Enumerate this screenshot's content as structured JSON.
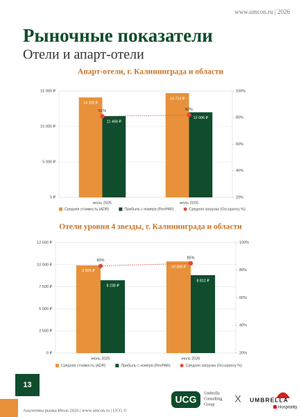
{
  "header": "www.umcon.ru | 2026",
  "title": "Рыночные показатели",
  "subtitle": "Отели и апарт-отели",
  "chart_data": [
    {
      "type": "bar",
      "title": "Апарт-отели, г. Калининграда и области",
      "categories": [
        "июль 2025",
        "июль 2026"
      ],
      "series": [
        {
          "name": "Средняя стоимость (ADR)",
          "color": "#e8913a",
          "values": [
            14100,
            14714
          ],
          "value_labels": [
            "14 100 ₽",
            "14 714 ₽"
          ]
        },
        {
          "name": "Прибыль с номера (RevPAR)",
          "color": "#0f4d2c",
          "values": [
            11468,
            12006
          ],
          "value_labels": [
            "11 468 ₽",
            "12 006 ₽"
          ]
        },
        {
          "name": "Средняя загрузка (Occupancy %)",
          "color": "#e04b3a",
          "type": "line",
          "axis": "y2",
          "values": [
            81,
            82
          ],
          "value_labels": [
            "81%",
            "82%"
          ]
        }
      ],
      "ylim": [
        0,
        15000
      ],
      "yticks": [
        {
          "value": 0,
          "label": "0 ₽"
        },
        {
          "value": 5000,
          "label": "5 000 ₽"
        },
        {
          "value": 10000,
          "label": "10 000 ₽"
        },
        {
          "value": 15000,
          "label": "15 000 ₽"
        }
      ],
      "y2lim": [
        20,
        100
      ],
      "y2ticks": [
        {
          "value": 20,
          "label": "20%"
        },
        {
          "value": 40,
          "label": "40%"
        },
        {
          "value": 60,
          "label": "60%"
        },
        {
          "value": 80,
          "label": "80%"
        },
        {
          "value": 100,
          "label": "100%"
        }
      ],
      "grid": true,
      "legend": "bottom"
    },
    {
      "type": "bar",
      "title": "Отели уровня 4 звезды, г. Калининграда и области",
      "categories": [
        "июль 2025",
        "июль 2026"
      ],
      "series": [
        {
          "name": "Средняя стоимость (ADR)",
          "color": "#e8913a",
          "values": [
            9926,
            10368
          ],
          "value_labels": [
            "9 926 ₽",
            "10 368 ₽"
          ]
        },
        {
          "name": "Прибыль с номера (RevPAR)",
          "color": "#0f4d2c",
          "values": [
            8238,
            8812
          ],
          "value_labels": [
            "8 238 ₽",
            "8 812 ₽"
          ]
        },
        {
          "name": "Средняя загрузка (Occupancy %)",
          "color": "#e04b3a",
          "type": "line",
          "axis": "y2",
          "values": [
            83,
            85
          ],
          "value_labels": [
            "83%",
            "85%"
          ]
        }
      ],
      "ylim": [
        0,
        12500
      ],
      "yticks": [
        {
          "value": 0,
          "label": "0 ₽"
        },
        {
          "value": 2500,
          "label": "2 500 ₽"
        },
        {
          "value": 5000,
          "label": "5 000 ₽"
        },
        {
          "value": 7500,
          "label": "7 500 ₽"
        },
        {
          "value": 10000,
          "label": "10 000 ₽"
        },
        {
          "value": 12500,
          "label": "12 500 ₽"
        }
      ],
      "y2lim": [
        20,
        100
      ],
      "y2ticks": [
        {
          "value": 20,
          "label": "20%"
        },
        {
          "value": 40,
          "label": "40%"
        },
        {
          "value": 60,
          "label": "60%"
        },
        {
          "value": 80,
          "label": "80%"
        },
        {
          "value": 100,
          "label": "100%"
        }
      ],
      "grid": true,
      "legend": "bottom"
    }
  ],
  "page_number": "13",
  "footer": "Аналитика рынка Июль 2026 | www.umcon.ru | UCG ©",
  "logos": {
    "ucg": "UCG",
    "ucg_name": [
      "Umbrella",
      "Consulting",
      "Group"
    ],
    "separator": "X",
    "umbrella": "UMBRELLA",
    "hospitality": "Hospitality"
  }
}
